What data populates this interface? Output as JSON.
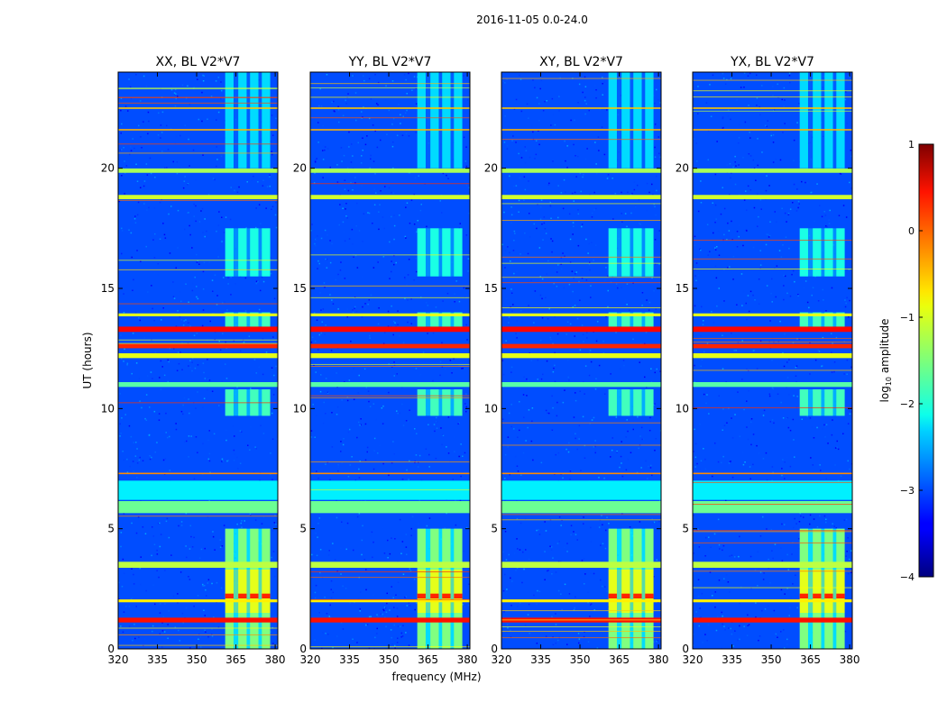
{
  "chart_data": {
    "type": "heatmap",
    "suptitle": "2016-11-05 0.0-24.0",
    "xlabel": "frequency (MHz)",
    "ylabel": "UT (hours)",
    "xlim": [
      320,
      381
    ],
    "ylim": [
      0,
      24
    ],
    "xticks": [
      "320",
      "335",
      "350",
      "365",
      "380"
    ],
    "yticks": [
      "0",
      "5",
      "10",
      "15",
      "20"
    ],
    "panels": [
      {
        "title": "XX, BL V2*V7"
      },
      {
        "title": "YY, BL V2*V7"
      },
      {
        "title": "XY, BL V2*V7"
      },
      {
        "title": "YX, BL V2*V7"
      }
    ],
    "colorbar": {
      "label": "log10 amplitude",
      "label_base": "log",
      "label_sub": "10",
      "label_rest": " amplitude",
      "range": [
        -4,
        1
      ],
      "ticks": [
        "1",
        "0",
        "−1",
        "−2",
        "−3",
        "−4"
      ],
      "colormap": "jet"
    },
    "background_level": -3,
    "rfi_band": {
      "from_mhz": 361,
      "to_mhz": 378,
      "column_centers_mhz": [
        362.5,
        367.5,
        372,
        376.5
      ]
    },
    "band_activity_hours": [
      {
        "from": 0.0,
        "to": 1.5,
        "level": -1.5
      },
      {
        "from": 1.5,
        "to": 3.3,
        "level": -1.0
      },
      {
        "from": 3.3,
        "to": 5.0,
        "level": -1.5
      },
      {
        "from": 9.7,
        "to": 10.8,
        "level": -1.8
      },
      {
        "from": 13.3,
        "to": 14.0,
        "level": -1.8
      },
      {
        "from": 15.5,
        "to": 17.5,
        "level": -2.0
      },
      {
        "from": 20.0,
        "to": 24.0,
        "level": -2.3
      }
    ],
    "hot_band_hours": [
      {
        "from": 2.1,
        "to": 2.3,
        "level": 0.2
      }
    ],
    "horizontal_rfi_lines": [
      {
        "t": 1.2,
        "level": 0.3,
        "width_h": 0.2
      },
      {
        "t": 2.0,
        "level": -0.8,
        "width_h": 0.12
      },
      {
        "t": 3.5,
        "level": -1.2,
        "width_h": 0.25
      },
      {
        "t": 5.9,
        "level": -1.6,
        "width_h": 0.5
      },
      {
        "t": 6.6,
        "level": -2.2,
        "width_h": 0.8
      },
      {
        "t": 7.3,
        "level": -0.3,
        "width_h": 0.06
      },
      {
        "t": 11.0,
        "level": -1.7,
        "width_h": 0.2
      },
      {
        "t": 12.2,
        "level": -1.0,
        "width_h": 0.2
      },
      {
        "t": 12.6,
        "level": 0.2,
        "width_h": 0.18
      },
      {
        "t": 13.3,
        "level": 0.35,
        "width_h": 0.22
      },
      {
        "t": 13.9,
        "level": -1.0,
        "width_h": 0.12
      },
      {
        "t": 18.8,
        "level": -1.1,
        "width_h": 0.18
      },
      {
        "t": 19.9,
        "level": -1.3,
        "width_h": 0.18
      },
      {
        "t": 21.6,
        "level": -0.5,
        "width_h": 0.06
      },
      {
        "t": 22.5,
        "level": -0.6,
        "width_h": 0.06
      }
    ]
  }
}
